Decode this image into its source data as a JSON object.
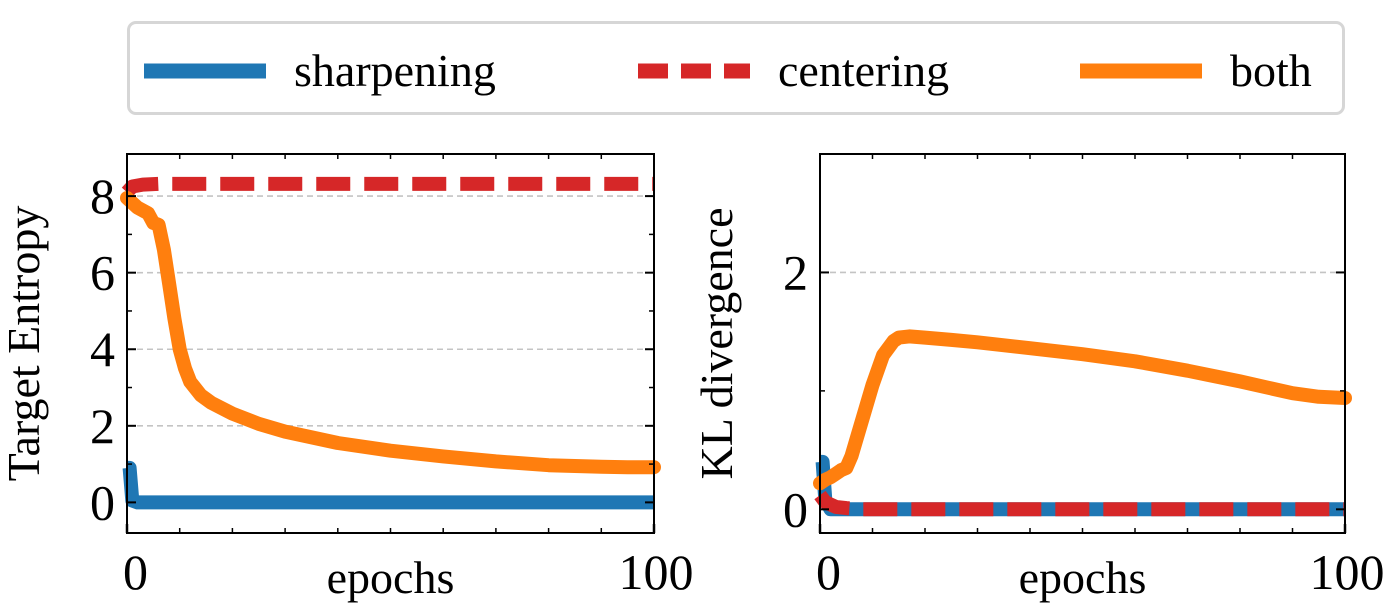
{
  "legend": {
    "items": [
      {
        "label": "sharpening",
        "color": "#1f77b4",
        "style": "solid"
      },
      {
        "label": "centering",
        "color": "#d62728",
        "style": "dashed"
      },
      {
        "label": "both",
        "color": "#ff7f0e",
        "style": "solid"
      }
    ]
  },
  "chart_data": [
    {
      "type": "line",
      "title": "",
      "xlabel": "epochs",
      "ylabel": "Target Entropy",
      "xlim": [
        0,
        100
      ],
      "ylim": [
        -0.8,
        9.1
      ],
      "xticks": [
        0,
        100
      ],
      "xtick_labels": [
        "0",
        "100"
      ],
      "yticks": [
        0,
        2,
        4,
        6,
        8
      ],
      "ytick_labels": [
        "0",
        "2",
        "4",
        "6",
        "8"
      ],
      "grid": "horizontal dashed",
      "series": [
        {
          "name": "sharpening",
          "color": "#1f77b4",
          "style": "solid",
          "x": [
            0,
            0.5,
            1,
            2,
            100
          ],
          "y": [
            0.9,
            0.9,
            0.05,
            0,
            0
          ]
        },
        {
          "name": "centering",
          "color": "#d62728",
          "style": "dashed",
          "x": [
            0,
            1,
            3,
            6,
            100
          ],
          "y": [
            8.1,
            8.25,
            8.3,
            8.32,
            8.32
          ]
        },
        {
          "name": "both",
          "color": "#ff7f0e",
          "style": "solid",
          "x": [
            0,
            2,
            4,
            5,
            6,
            7,
            8,
            9,
            10,
            11,
            12,
            14,
            16,
            20,
            25,
            30,
            40,
            50,
            60,
            70,
            80,
            90,
            95,
            100
          ],
          "y": [
            7.95,
            7.7,
            7.55,
            7.3,
            7.25,
            6.6,
            5.7,
            4.8,
            4.0,
            3.5,
            3.15,
            2.8,
            2.6,
            2.32,
            2.05,
            1.85,
            1.55,
            1.35,
            1.2,
            1.07,
            0.97,
            0.93,
            0.92,
            0.92
          ]
        }
      ]
    },
    {
      "type": "line",
      "title": "",
      "xlabel": "epochs",
      "ylabel": "KL divergence",
      "xlim": [
        0,
        100
      ],
      "ylim": [
        -0.2,
        3.0
      ],
      "xticks": [
        0,
        100
      ],
      "xtick_labels": [
        "0",
        "100"
      ],
      "yticks": [
        0,
        2
      ],
      "ytick_labels": [
        "0",
        "2"
      ],
      "grid": "horizontal dashed",
      "series": [
        {
          "name": "sharpening",
          "color": "#1f77b4",
          "style": "solid",
          "x": [
            0,
            0.5,
            1,
            2,
            100
          ],
          "y": [
            0.4,
            0.4,
            0.08,
            0,
            0
          ]
        },
        {
          "name": "centering",
          "color": "#d62728",
          "style": "dashed",
          "x": [
            0,
            1,
            3,
            5,
            8,
            100
          ],
          "y": [
            0.12,
            0.06,
            0.02,
            0.01,
            0,
            0
          ]
        },
        {
          "name": "both",
          "color": "#ff7f0e",
          "style": "solid",
          "x": [
            0,
            1,
            2,
            3,
            4,
            5,
            6,
            8,
            10,
            12,
            14,
            15,
            17,
            20,
            25,
            30,
            40,
            50,
            60,
            70,
            80,
            90,
            95,
            100
          ],
          "y": [
            0.22,
            0.25,
            0.27,
            0.3,
            0.33,
            0.35,
            0.45,
            0.75,
            1.05,
            1.3,
            1.42,
            1.45,
            1.46,
            1.45,
            1.43,
            1.41,
            1.36,
            1.31,
            1.25,
            1.17,
            1.08,
            0.98,
            0.95,
            0.94
          ]
        }
      ]
    }
  ]
}
